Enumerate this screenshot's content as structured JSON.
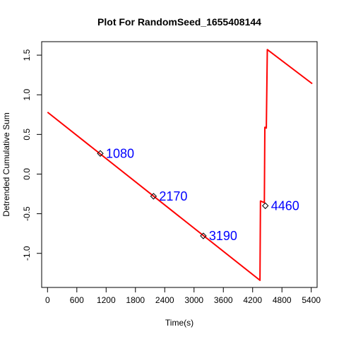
{
  "chart_data": {
    "type": "line",
    "title": "Plot For RandomSeed_1655408144",
    "xlabel": "Time(s)",
    "ylabel": "Detrended Cumulative Sum",
    "xlim": [
      -120,
      5520
    ],
    "ylim": [
      -1.43,
      1.67
    ],
    "x_ticks": [
      0,
      600,
      1200,
      1800,
      2400,
      3000,
      3600,
      4200,
      4800,
      5400
    ],
    "x_tick_labels": [
      "0",
      "600",
      "1200",
      "1800",
      "2400",
      "3000",
      "3600",
      "4200",
      "4800",
      "5400"
    ],
    "y_ticks": [
      -1.0,
      -0.5,
      0.0,
      0.5,
      1.0,
      1.5
    ],
    "y_tick_labels": [
      "-1.0",
      "-0.5",
      "0.0",
      "0.5",
      "1.0",
      "1.5"
    ],
    "grid": false,
    "series": [
      {
        "color": "#ff0000",
        "x": [
          0,
          4350,
          4360,
          4440,
          4450,
          4460,
          4480,
          4500,
          5420
        ],
        "y": [
          0.78,
          -1.34,
          -0.34,
          -0.36,
          0.59,
          0.59,
          0.58,
          1.57,
          1.14
        ]
      }
    ],
    "markers": [
      {
        "x": 1080,
        "y": 0.26,
        "label": "1080"
      },
      {
        "x": 2170,
        "y": -0.28,
        "label": "2170"
      },
      {
        "x": 3190,
        "y": -0.78,
        "label": "3190"
      },
      {
        "x": 4460,
        "y": -0.4,
        "label": "4460"
      }
    ],
    "annotation_color": "#0000ff",
    "marker_shape": "diamond-open"
  }
}
